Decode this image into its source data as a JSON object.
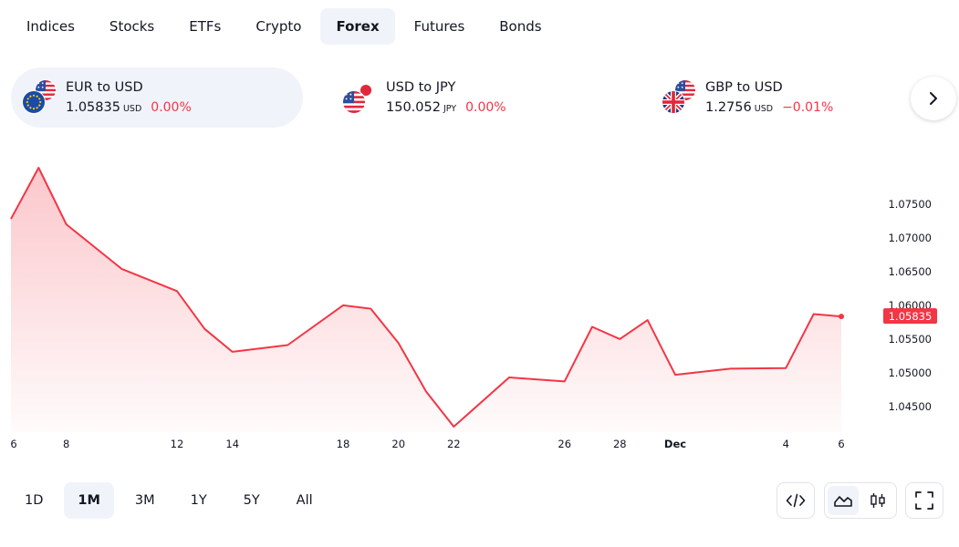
{
  "tabs": [
    {
      "label": "Indices",
      "active": false
    },
    {
      "label": "Stocks",
      "active": false
    },
    {
      "label": "ETFs",
      "active": false
    },
    {
      "label": "Crypto",
      "active": false
    },
    {
      "label": "Forex",
      "active": true
    },
    {
      "label": "Futures",
      "active": false
    },
    {
      "label": "Bonds",
      "active": false
    }
  ],
  "cards": [
    {
      "name": "EUR to USD",
      "price": "1.05835",
      "currency": "USD",
      "change": "0.00%",
      "flags": [
        "us-flag",
        "eu-flag"
      ],
      "active": true
    },
    {
      "name": "USD to JPY",
      "price": "150.052",
      "currency": "JPY",
      "change": "0.00%",
      "flags": [
        "jp-flag",
        "us-flag"
      ],
      "active": false
    },
    {
      "name": "GBP to USD",
      "price": "1.2756",
      "currency": "USD",
      "change": "−0.01%",
      "flags": [
        "us-flag",
        "uk-flag"
      ],
      "active": false
    }
  ],
  "chart_data": {
    "type": "area",
    "series": [
      {
        "x": [
          "Nov 6",
          "Nov 7",
          "Nov 8",
          "Nov 10",
          "Nov 12",
          "Nov 13",
          "Nov 14",
          "Nov 16",
          "Nov 18",
          "Nov 19",
          "Nov 20",
          "Nov 21",
          "Nov 22",
          "Nov 24",
          "Nov 26",
          "Nov 27",
          "Nov 28",
          "Nov 29",
          "Nov 30",
          "Dec 2",
          "Dec 4",
          "Dec 5",
          "Dec 6"
        ],
        "values": [
          1.0728,
          1.0804,
          1.072,
          1.0654,
          1.0621,
          1.0565,
          1.0531,
          1.0541,
          1.06,
          1.0595,
          1.0544,
          1.0472,
          1.042,
          1.0493,
          1.0487,
          1.0568,
          1.055,
          1.0578,
          1.0497,
          1.0506,
          1.0507,
          1.0587,
          1.05835
        ]
      }
    ],
    "x_tick_labels": [
      "6",
      "8",
      "12",
      "14",
      "18",
      "20",
      "22",
      "26",
      "28",
      "Dec",
      "4",
      "6"
    ],
    "y_tick_labels": [
      "1.07500",
      "1.07000",
      "1.06500",
      "1.06000",
      "1.05500",
      "1.05000",
      "1.04500"
    ],
    "y_ticks": [
      1.075,
      1.07,
      1.065,
      1.06,
      1.055,
      1.05,
      1.045
    ],
    "last_value_label": "1.05835",
    "last_value": 1.05835,
    "ylim": [
      1.042,
      1.0804
    ],
    "line_color": "#f23645",
    "fill_color": "#f23645"
  },
  "ranges": [
    {
      "label": "1D",
      "active": false
    },
    {
      "label": "1M",
      "active": true
    },
    {
      "label": "3M",
      "active": false
    },
    {
      "label": "1Y",
      "active": false
    },
    {
      "label": "5Y",
      "active": false
    },
    {
      "label": "All",
      "active": false
    }
  ],
  "tools": {
    "embed": "code-icon",
    "area": "area-chart-icon",
    "candles": "candlestick-icon",
    "fullscreen": "fullscreen-icon"
  }
}
